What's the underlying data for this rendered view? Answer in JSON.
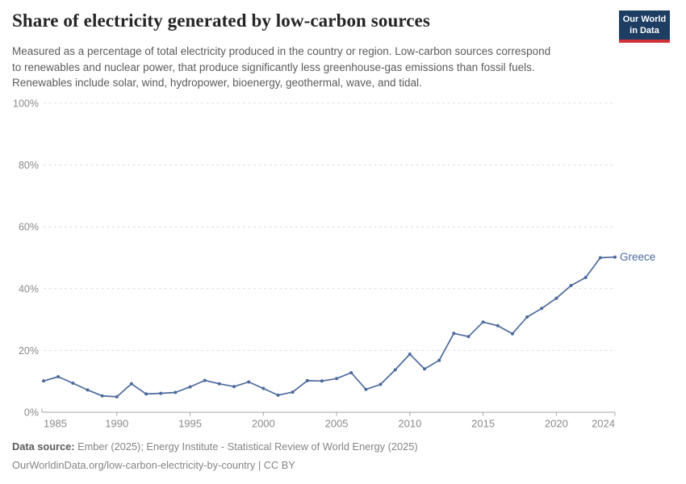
{
  "header": {
    "title": "Share of electricity generated by low-carbon sources",
    "subtitle": "Measured as a percentage of total electricity produced in the country or region. Low-carbon sources correspond to renewables and nuclear power, that produce significantly less greenhouse-gas emissions than fossil fuels. Renewables include solar, wind, hydropower, bioenergy, geothermal, wave, and tidal.",
    "logo": {
      "line1": "Our World",
      "line2": "in Data"
    }
  },
  "chart_data": {
    "type": "line",
    "title": "Share of electricity generated by low-carbon sources",
    "x": [
      1985,
      1986,
      1987,
      1988,
      1989,
      1990,
      1991,
      1992,
      1993,
      1994,
      1995,
      1996,
      1997,
      1998,
      1999,
      2000,
      2001,
      2002,
      2003,
      2004,
      2005,
      2006,
      2007,
      2008,
      2009,
      2010,
      2011,
      2012,
      2013,
      2014,
      2015,
      2016,
      2017,
      2018,
      2019,
      2020,
      2021,
      2022,
      2023,
      2024
    ],
    "series": [
      {
        "name": "Greece",
        "color": "#4C6A9C",
        "values": [
          10.1,
          11.5,
          9.4,
          7.2,
          5.3,
          5.0,
          9.2,
          5.9,
          6.1,
          6.4,
          8.2,
          10.3,
          9.2,
          8.3,
          9.8,
          7.7,
          5.5,
          6.5,
          10.2,
          10.1,
          10.9,
          12.8,
          7.4,
          9.0,
          13.7,
          18.8,
          14.0,
          16.8,
          25.5,
          24.5,
          29.2,
          28.0,
          25.4,
          30.8,
          33.6,
          36.9,
          41.0,
          43.6,
          50.0,
          50.2
        ]
      }
    ],
    "xlabel": "",
    "ylabel": "",
    "ylim": [
      0,
      100
    ],
    "yticks": [
      0,
      20,
      40,
      60,
      80,
      100
    ],
    "ytick_suffix": "%",
    "xticks": [
      1985,
      1990,
      1995,
      2000,
      2005,
      2010,
      2015,
      2020,
      2024
    ],
    "grid": "horizontal-dashed",
    "legend": "end-of-line-label",
    "marker": "point"
  },
  "footer": {
    "datasource_label": "Data source:",
    "datasource_value": " Ember (2025); Energy Institute - Statistical Review of World Energy (2025)",
    "license_line": "OurWorldinData.org/low-carbon-electricity-by-country | CC BY"
  },
  "colors": {
    "series_line": "#4C6A9C",
    "grid_line": "#dedede",
    "axis_line": "#a5a5a5",
    "tick_label": "#8a8a8a",
    "title_text": "#252525",
    "subtitle_text": "#5b5b5b",
    "footer_text": "#848484",
    "logo_bg": "#1d3d63",
    "logo_accent": "#d13239"
  }
}
